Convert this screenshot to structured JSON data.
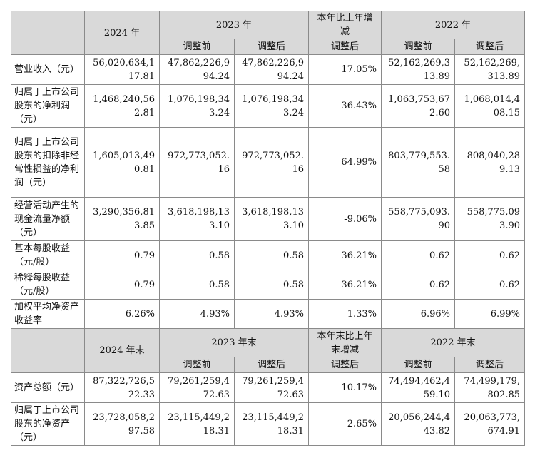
{
  "header1": {
    "y2024": "2024 年",
    "y2023": "2023 年",
    "change": "本年比上年增减",
    "y2022": "2022 年",
    "before": "调整前",
    "after": "调整后",
    "change_after": "调整后"
  },
  "rows1": [
    {
      "label": "营业收入（元）",
      "v2024": "56,020,634,117.81",
      "v2023_before": "47,862,226,994.24",
      "v2023_after": "47,862,226,994.24",
      "change": "17.05%",
      "v2022_before": "52,162,269,313.89",
      "v2022_after": "52,162,269,313.89"
    },
    {
      "label": "归属于上市公司股东的净利润（元）",
      "v2024": "1,468,240,562.81",
      "v2023_before": "1,076,198,343.24",
      "v2023_after": "1,076,198,343.24",
      "change": "36.43%",
      "v2022_before": "1,063,753,672.60",
      "v2022_after": "1,068,014,408.15"
    },
    {
      "label": "归属于上市公司股东的扣除非经常性损益的净利润（元）",
      "v2024": "1,605,013,490.81",
      "v2023_before": "972,773,052.16",
      "v2023_after": "972,773,052.16",
      "change": "64.99%",
      "v2022_before": "803,779,553.58",
      "v2022_after": "808,040,289.13"
    },
    {
      "label": "经营活动产生的现金流量净额（元）",
      "v2024": "3,290,356,813.85",
      "v2023_before": "3,618,198,133.10",
      "v2023_after": "3,618,198,133.10",
      "change": "-9.06%",
      "v2022_before": "558,775,093.90",
      "v2022_after": "558,775,093.90"
    },
    {
      "label": "基本每股收益（元/股）",
      "v2024": "0.79",
      "v2023_before": "0.58",
      "v2023_after": "0.58",
      "change": "36.21%",
      "v2022_before": "0.62",
      "v2022_after": "0.62"
    },
    {
      "label": "稀释每股收益（元/股）",
      "v2024": "0.79",
      "v2023_before": "0.58",
      "v2023_after": "0.58",
      "change": "36.21%",
      "v2022_before": "0.62",
      "v2022_after": "0.62"
    },
    {
      "label": "加权平均净资产收益率",
      "v2024": "6.26%",
      "v2023_before": "4.93%",
      "v2023_after": "4.93%",
      "change": "1.33%",
      "v2022_before": "6.96%",
      "v2022_after": "6.99%"
    }
  ],
  "header2": {
    "y2024": "2024 年末",
    "y2023": "2023 年末",
    "change": "本年末比上年末增减",
    "y2022": "2022 年末",
    "before": "调整前",
    "after": "调整后",
    "change_after": "调整后"
  },
  "rows2": [
    {
      "label": "资产总额（元）",
      "v2024": "87,322,726,522.33",
      "v2023_before": "79,261,259,472.63",
      "v2023_after": "79,261,259,472.63",
      "change": "10.17%",
      "v2022_before": "74,494,462,459.10",
      "v2022_after": "74,499,179,802.85"
    },
    {
      "label": "归属于上市公司股东的净资产（元）",
      "v2024": "23,728,058,297.58",
      "v2023_before": "23,115,449,218.31",
      "v2023_after": "23,115,449,218.31",
      "change": "2.65%",
      "v2022_before": "20,056,244,443.82",
      "v2022_after": "20,063,773,674.91"
    }
  ]
}
